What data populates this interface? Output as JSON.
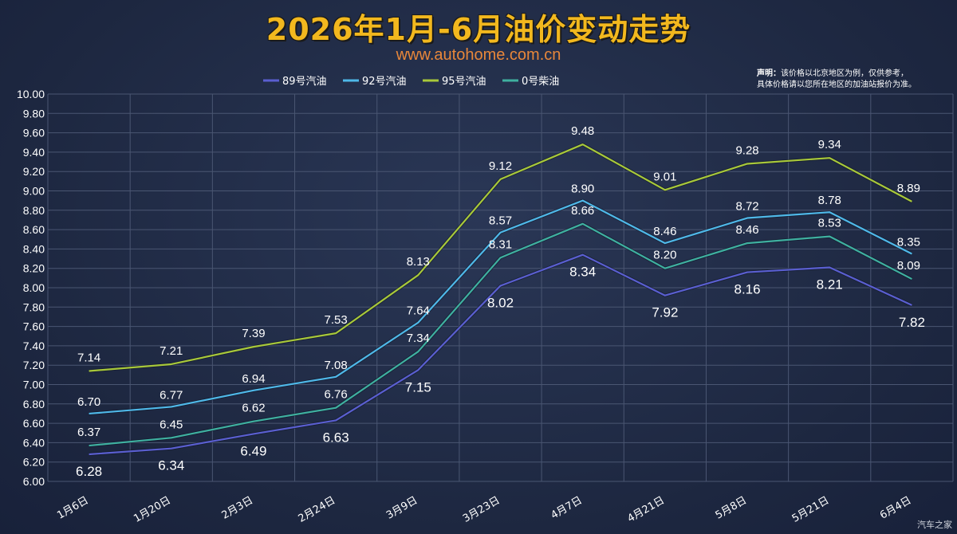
{
  "chart_data": {
    "type": "line",
    "title": "2026年1月-6月油价变动走势",
    "subtitle": "www.autohome.com.cn",
    "note_bold": "声明：",
    "note_line1": "该价格以北京地区为例，仅供参考，",
    "note_line2": "具体价格请以您所在地区的加油站报价为准。",
    "watermark": "汽车之家",
    "xlabel": "",
    "ylabel": "",
    "ylim": [
      6.0,
      10.0
    ],
    "ytick_step": 0.2,
    "grid": true,
    "legend_position": "top",
    "categories": [
      "1月6日",
      "1月20日",
      "2月3日",
      "2月24日",
      "3月9日",
      "3月23日",
      "4月7日",
      "4月21日",
      "5月8日",
      "5月21日",
      "6月4日"
    ],
    "series": [
      {
        "name": "89号汽油",
        "color": "#5a5fd0",
        "values": [
          6.28,
          6.34,
          6.49,
          6.63,
          7.15,
          8.02,
          8.34,
          7.92,
          8.16,
          8.21,
          7.82
        ]
      },
      {
        "name": "92号汽油",
        "color": "#4fb8e8",
        "values": [
          6.7,
          6.77,
          6.94,
          7.08,
          7.64,
          8.57,
          8.9,
          8.46,
          8.72,
          8.78,
          8.35
        ]
      },
      {
        "name": "95号汽油",
        "color": "#a8c83a",
        "values": [
          7.14,
          7.21,
          7.39,
          7.53,
          8.13,
          9.12,
          9.48,
          9.01,
          9.28,
          9.34,
          8.89
        ]
      },
      {
        "name": "0号柴油",
        "color": "#3fb0a0",
        "values": [
          6.37,
          6.45,
          6.62,
          6.76,
          7.34,
          8.31,
          8.66,
          8.2,
          8.46,
          8.53,
          8.09
        ]
      }
    ]
  }
}
